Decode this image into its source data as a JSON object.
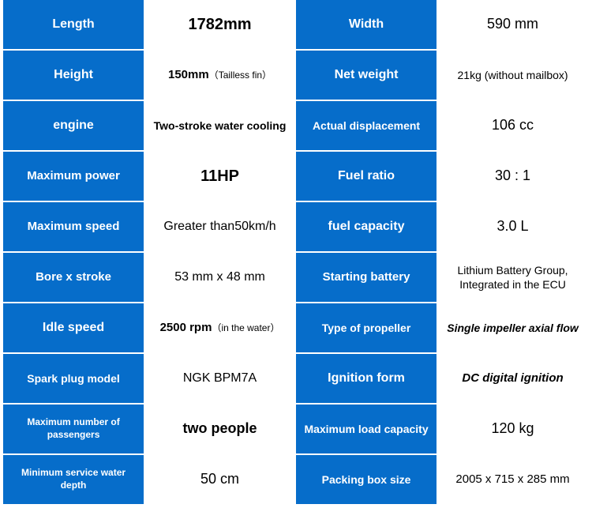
{
  "colors": {
    "label_bg": "#066dca",
    "label_text": "#ffffff",
    "value_bg": "#ffffff",
    "value_text": "#000000",
    "border": "#ffffff"
  },
  "rows": [
    {
      "left_label": {
        "text": "Length",
        "fs": 16
      },
      "left_value": {
        "text": "1782mm",
        "fs": 20,
        "bold": true
      },
      "right_label": {
        "text": "Width",
        "fs": 16
      },
      "right_value": {
        "text": "590 mm",
        "fs": 18
      }
    },
    {
      "left_label": {
        "text": "Height",
        "fs": 16
      },
      "left_value": {
        "text": "150mm",
        "suffix": "（Tailless fin）",
        "fs": 15,
        "bold": true
      },
      "right_label": {
        "text": "Net weight",
        "fs": 16
      },
      "right_value": {
        "text": "21kg (without mailbox)",
        "fs": 14
      }
    },
    {
      "left_label": {
        "text": "engine",
        "fs": 16
      },
      "left_value": {
        "text": "Two-stroke water cooling",
        "fs": 14,
        "bold": true
      },
      "right_label": {
        "text": "Actual displacement",
        "fs": 14
      },
      "right_value": {
        "text": "106 cc",
        "fs": 18
      }
    },
    {
      "left_label": {
        "text": "Maximum power",
        "fs": 15
      },
      "left_value": {
        "text": "11HP",
        "fs": 20,
        "bold": true
      },
      "right_label": {
        "text": "Fuel ratio",
        "fs": 16
      },
      "right_value": {
        "text": "30 : 1",
        "fs": 18
      }
    },
    {
      "left_label": {
        "text": "Maximum speed",
        "fs": 15
      },
      "left_value": {
        "text": "Greater than50km/h",
        "fs": 16
      },
      "right_label": {
        "text": "fuel capacity",
        "fs": 16
      },
      "right_value": {
        "text": "3.0 L",
        "fs": 18
      }
    },
    {
      "left_label": {
        "text": "Bore x stroke",
        "fs": 15
      },
      "left_value": {
        "text": "53 mm x 48 mm",
        "fs": 16
      },
      "right_label": {
        "text": "Starting battery",
        "fs": 15
      },
      "right_value": {
        "text": "Lithium Battery Group, Integrated in the ECU",
        "fs": 14
      }
    },
    {
      "left_label": {
        "text": "Idle speed",
        "fs": 16
      },
      "left_value": {
        "text": "2500 rpm",
        "suffix": "（in the water）",
        "fs": 15,
        "bold": true
      },
      "right_label": {
        "text": "Type of propeller",
        "fs": 14
      },
      "right_value": {
        "text": "Single impeller axial flow",
        "fs": 14,
        "italic": true,
        "bold": true
      }
    },
    {
      "left_label": {
        "text": "Spark plug model",
        "fs": 14
      },
      "left_value": {
        "text": "NGK BPM7A",
        "fs": 16
      },
      "right_label": {
        "text": "Ignition form",
        "fs": 16
      },
      "right_value": {
        "text": "DC digital ignition",
        "fs": 15,
        "italic": true,
        "bold": true
      }
    },
    {
      "left_label": {
        "text": "Maximum number of passengers",
        "fs": 12
      },
      "left_value": {
        "text": "two people",
        "fs": 18,
        "bold": true
      },
      "right_label": {
        "text": "Maximum load capacity",
        "fs": 14
      },
      "right_value": {
        "text": "120 kg",
        "fs": 18
      }
    },
    {
      "left_label": {
        "text": "Minimum service water depth",
        "fs": 12
      },
      "left_value": {
        "text": "50 cm",
        "fs": 18
      },
      "right_label": {
        "text": "Packing box size",
        "fs": 14
      },
      "right_value": {
        "text": "2005 x 715  x 285 mm",
        "fs": 15
      }
    }
  ]
}
